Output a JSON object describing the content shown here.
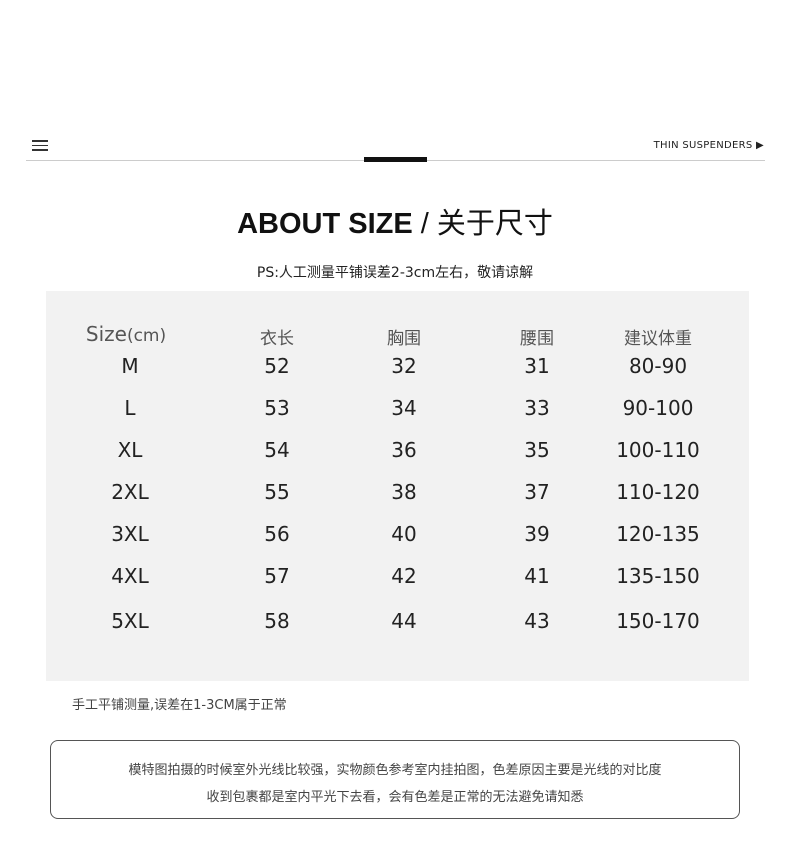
{
  "header": {
    "brand": "THIN SUSPENDERS ▶"
  },
  "title": {
    "en": "ABOUT SIZE",
    "sep": "/",
    "cn": "关于尺寸"
  },
  "ps": "PS:人工测量平铺误差2-3cm左右，敬请谅解",
  "table": {
    "headers": [
      "Size",
      "(cm)",
      "衣长",
      "胸围",
      "腰围",
      "建议体重"
    ],
    "rows": [
      [
        "M",
        "52",
        "32",
        "31",
        "80-90"
      ],
      [
        "L",
        "53",
        "34",
        "33",
        "90-100"
      ],
      [
        "XL",
        "54",
        "36",
        "35",
        "100-110"
      ],
      [
        "2XL",
        "55",
        "38",
        "37",
        "110-120"
      ],
      [
        "3XL",
        "56",
        "40",
        "39",
        "120-135"
      ],
      [
        "4XL",
        "57",
        "42",
        "41",
        "135-150"
      ],
      [
        "5XL",
        "58",
        "44",
        "43",
        "150-170"
      ]
    ]
  },
  "note": "手工平铺测量,误差在1-3CM属于正常",
  "disclaimer": [
    "模特图拍摄的时候室外光线比较强，实物颜色参考室内挂拍图，色差原因主要是光线的对比度",
    "收到包裹都是室内平光下去看，会有色差是正常的无法避免请知悉"
  ]
}
